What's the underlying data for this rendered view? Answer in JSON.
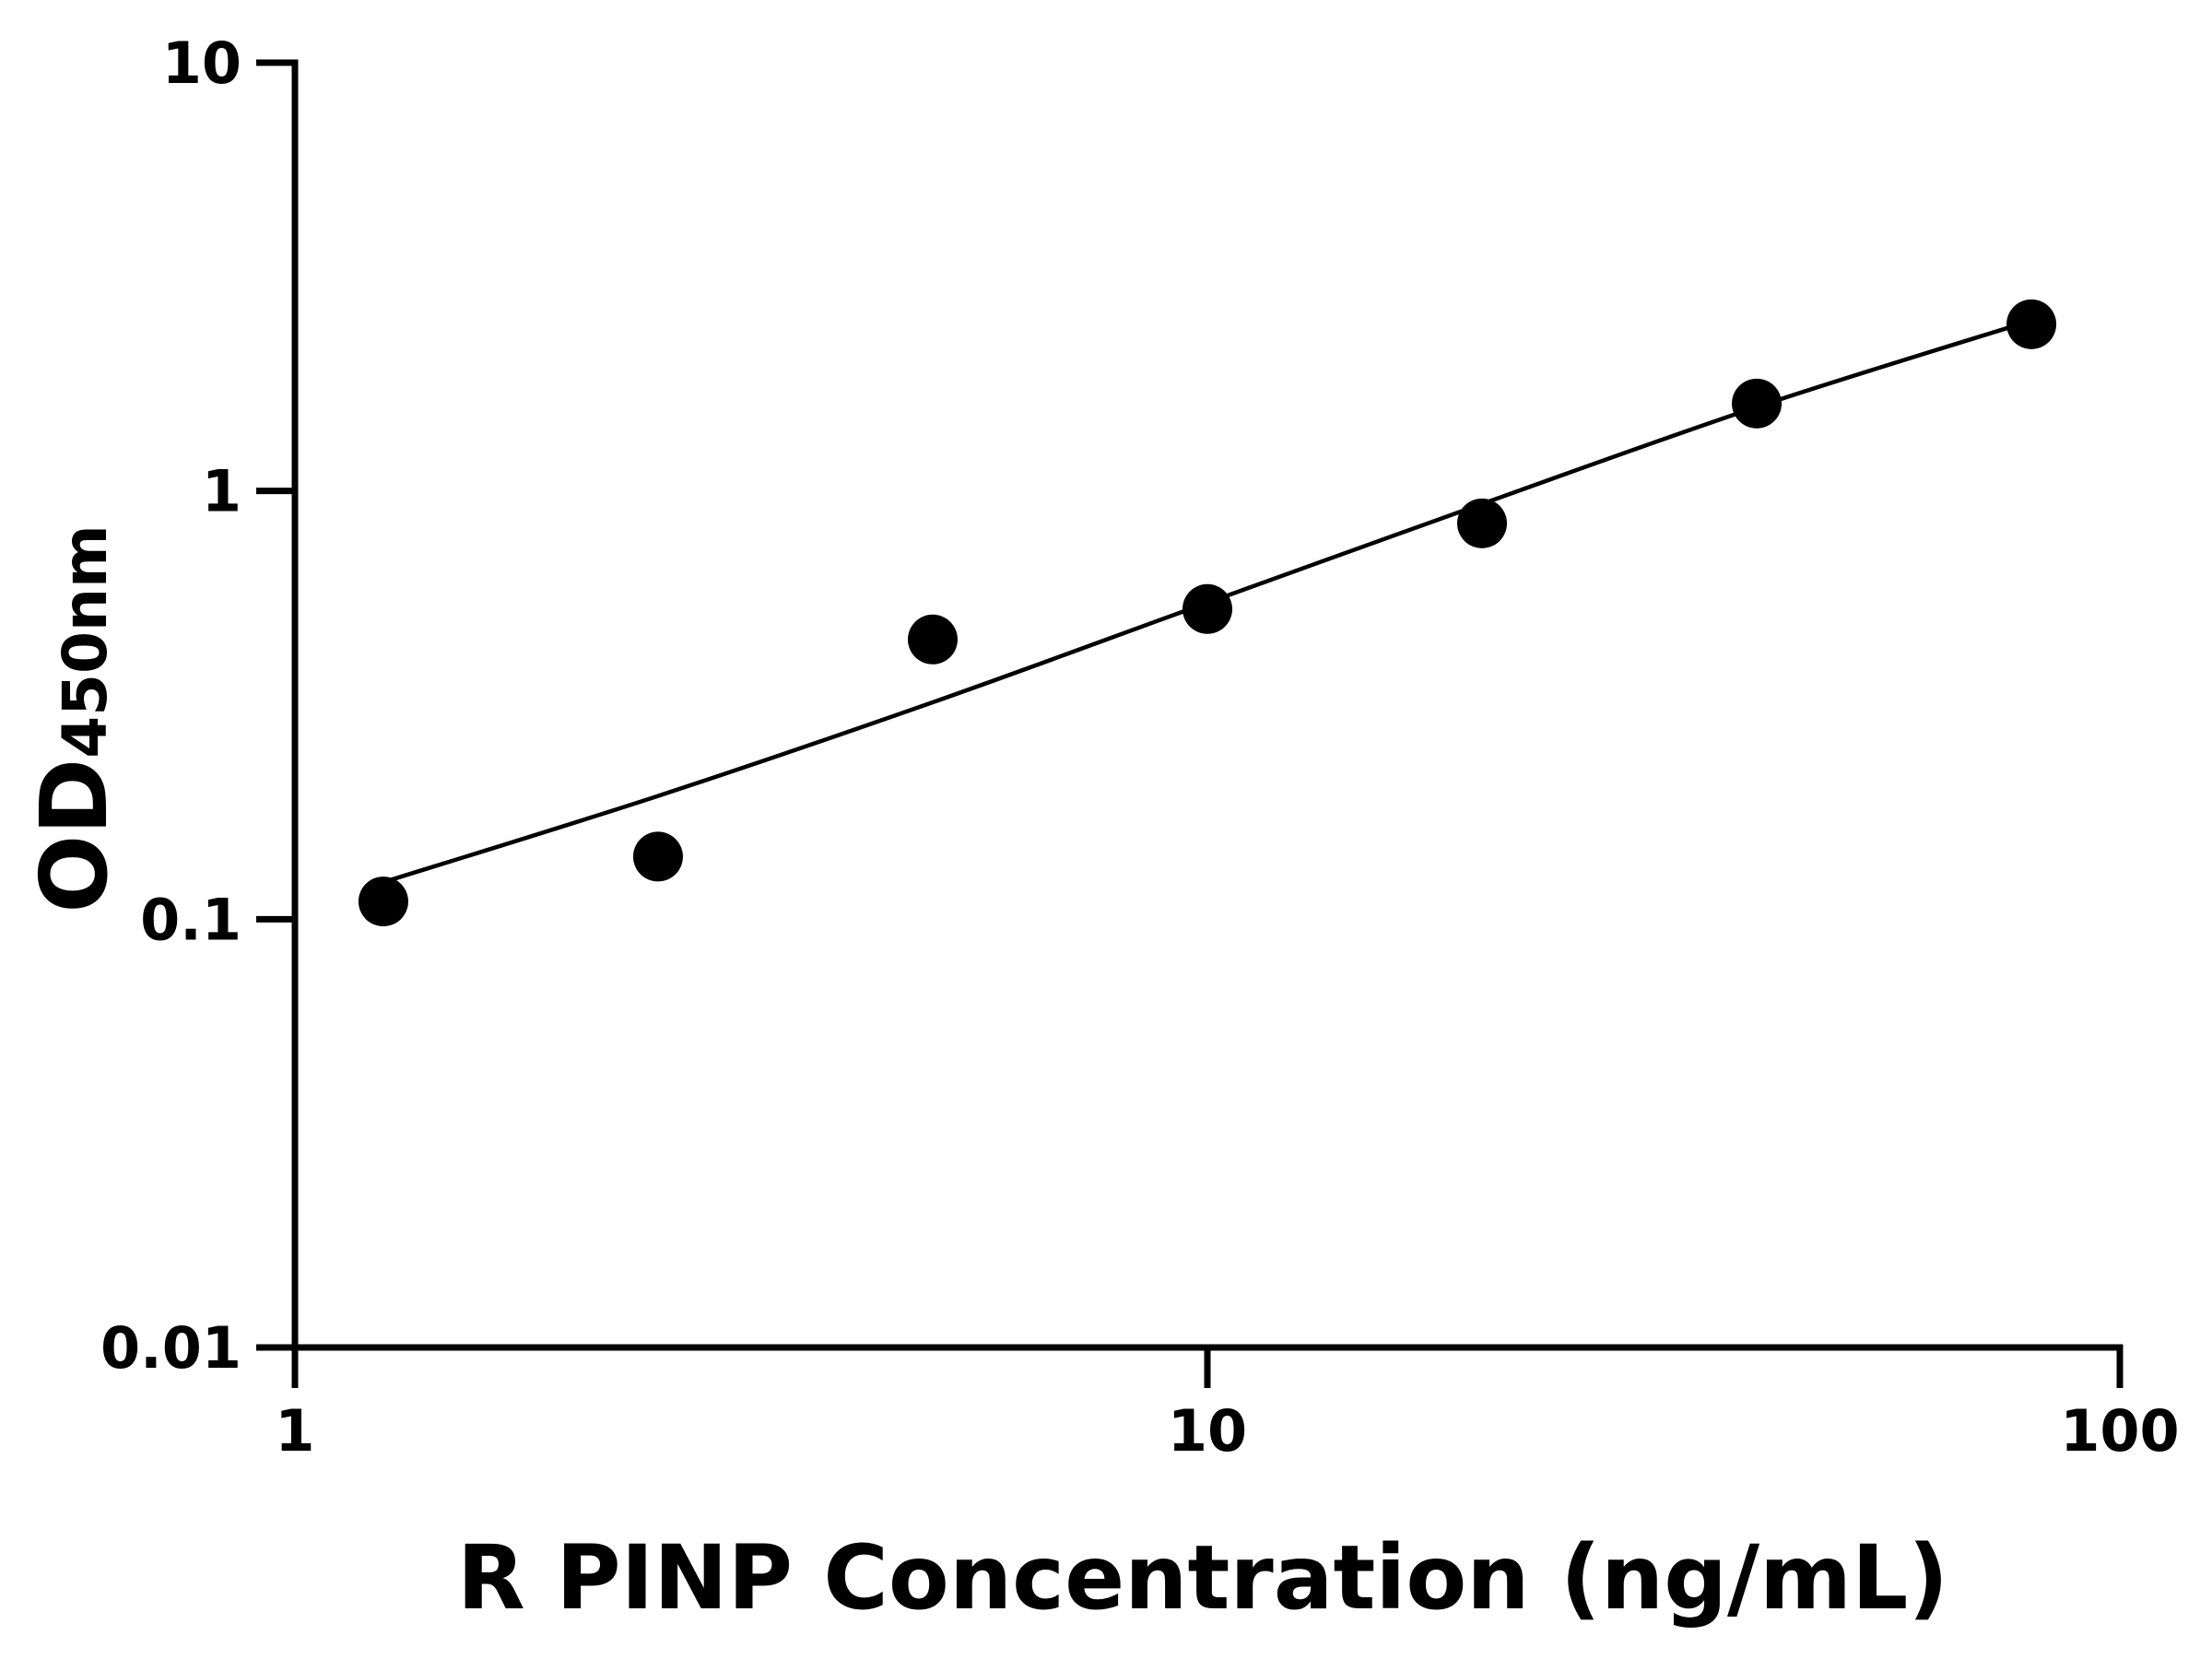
{
  "chart_data": {
    "type": "scatter",
    "title": "",
    "xlabel": "R PINP Concentration (ng/mL)",
    "ylabel": {
      "main": "OD",
      "subscript": "450nm"
    },
    "x_scale": "log",
    "y_scale": "log",
    "xlim": [
      1,
      100
    ],
    "ylim": [
      0.01,
      10
    ],
    "x_ticks": [
      {
        "value": 1,
        "label": "1"
      },
      {
        "value": 10,
        "label": "10"
      },
      {
        "value": 100,
        "label": "100"
      }
    ],
    "y_ticks": [
      {
        "value": 0.01,
        "label": "0.01"
      },
      {
        "value": 0.1,
        "label": "0.1"
      },
      {
        "value": 1,
        "label": "1"
      },
      {
        "value": 10,
        "label": "10"
      }
    ],
    "grid": false,
    "legend": "none",
    "points": [
      {
        "x": 1.25,
        "y": 0.11
      },
      {
        "x": 2.5,
        "y": 0.14
      },
      {
        "x": 5,
        "y": 0.45
      },
      {
        "x": 10,
        "y": 0.53
      },
      {
        "x": 20,
        "y": 0.84
      },
      {
        "x": 40,
        "y": 1.6
      },
      {
        "x": 80,
        "y": 2.45
      }
    ],
    "fit_line": [
      {
        "x": 1.25,
        "y": 0.122
      },
      {
        "x": 2.5,
        "y": 0.194
      },
      {
        "x": 5,
        "y": 0.321
      },
      {
        "x": 10,
        "y": 0.548
      },
      {
        "x": 20,
        "y": 0.933
      },
      {
        "x": 40,
        "y": 1.57
      },
      {
        "x": 80,
        "y": 2.5
      }
    ],
    "colors": {
      "marker": "#000000",
      "line": "#000000",
      "axis": "#000000"
    }
  }
}
